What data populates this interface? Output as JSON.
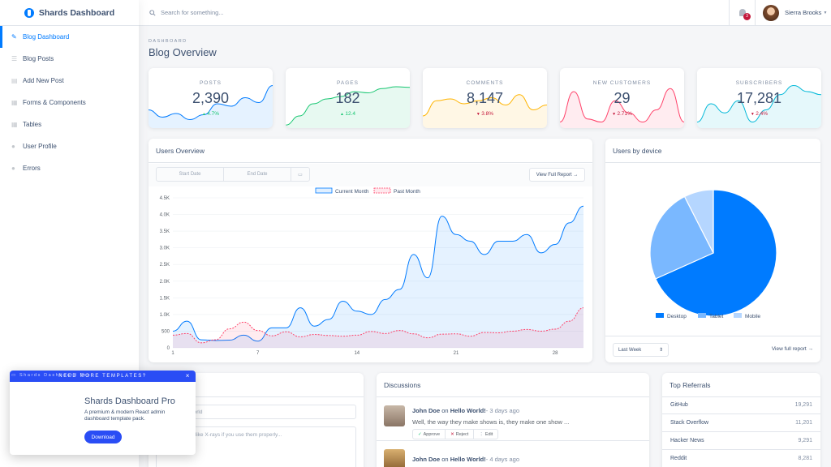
{
  "brand": {
    "name": "Shards Dashboard"
  },
  "sidebar": {
    "items": [
      {
        "label": "Blog Dashboard",
        "icon": "pencil-icon",
        "active": true
      },
      {
        "label": "Blog Posts",
        "icon": "list-icon"
      },
      {
        "label": "Add New Post",
        "icon": "document-icon"
      },
      {
        "label": "Forms & Components",
        "icon": "grid-icon"
      },
      {
        "label": "Tables",
        "icon": "table-icon"
      },
      {
        "label": "User Profile",
        "icon": "user-icon"
      },
      {
        "label": "Errors",
        "icon": "error-icon"
      }
    ]
  },
  "topbar": {
    "search_placeholder": "Search for something...",
    "notification_count": "3",
    "user_name": "Sierra Brooks"
  },
  "page": {
    "subtitle": "DASHBOARD",
    "title": "Blog Overview"
  },
  "stats": [
    {
      "label": "POSTS",
      "value": "2,390",
      "change": "4.7%",
      "direction": "up",
      "color": "#007bff"
    },
    {
      "label": "PAGES",
      "value": "182",
      "change": "12.4",
      "direction": "up",
      "color": "#17c671"
    },
    {
      "label": "COMMENTS",
      "value": "8,147",
      "change": "3.8%",
      "direction": "down",
      "color": "#ffb400"
    },
    {
      "label": "NEW CUSTOMERS",
      "value": "29",
      "change": "2.71%",
      "direction": "down",
      "color": "#ff4169"
    },
    {
      "label": "SUBSCRIBERS",
      "value": "17,281",
      "change": "2.4%",
      "direction": "down",
      "color": "#00b8d8"
    }
  ],
  "users_overview": {
    "title": "Users Overview",
    "start_date_placeholder": "Start Date",
    "end_date_placeholder": "End Date",
    "view_full_report": "View Full Report →"
  },
  "users_by_device": {
    "title": "Users by device",
    "range": "Last Week",
    "view_report": "View full report →"
  },
  "chart_data": [
    {
      "type": "area",
      "x": [
        1,
        2,
        3,
        4,
        5,
        6,
        7,
        8,
        9,
        10,
        11,
        12,
        13,
        14,
        15,
        16,
        17,
        18,
        19,
        20,
        21,
        22,
        23,
        24,
        25,
        26,
        27,
        28,
        29,
        30
      ],
      "x_ticks": [
        "1",
        "7",
        "14",
        "21",
        "28"
      ],
      "y_ticks": [
        "0",
        "500",
        "1.0K",
        "1.5K",
        "2.0K",
        "2.5K",
        "3.0K",
        "3.5K",
        "4.0K",
        "4.5K"
      ],
      "ylim": [
        0,
        4500
      ],
      "series": [
        {
          "name": "Current Month",
          "color": "#007bff",
          "values": [
            500,
            800,
            240,
            220,
            230,
            380,
            200,
            600,
            600,
            1200,
            650,
            850,
            1400,
            1100,
            1000,
            1450,
            1750,
            2800,
            2100,
            3950,
            3400,
            3200,
            2800,
            3200,
            3200,
            3400,
            2850,
            3100,
            3750,
            4250
          ]
        },
        {
          "name": "Past Month",
          "color": "#ff4169",
          "values": [
            380,
            430,
            150,
            240,
            570,
            770,
            520,
            360,
            480,
            330,
            400,
            370,
            350,
            380,
            490,
            430,
            520,
            420,
            300,
            410,
            420,
            350,
            460,
            450,
            500,
            550,
            500,
            560,
            800,
            1200
          ]
        }
      ]
    },
    {
      "type": "pie",
      "categories": [
        "Desktop",
        "Tablet",
        "Mobile"
      ],
      "values": [
        68.3,
        24.2,
        7.5
      ],
      "colors": [
        "#007bff",
        "#7ab8ff",
        "#b5d6ff"
      ],
      "legend": "bottom"
    }
  ],
  "quick_draft": {
    "title_placeholder": "Brave New World",
    "body_placeholder": "Words can be like X-rays if you use them properly..."
  },
  "discussions": {
    "title": "Discussions",
    "items": [
      {
        "author": "John Doe",
        "on": "on",
        "post": "Hello World!",
        "time": "- 3 days ago",
        "text": "Well, the way they make shows is, they make one show ..."
      },
      {
        "author": "John Doe",
        "on": "on",
        "post": "Hello World!",
        "time": "- 4 days ago"
      }
    ],
    "actions": {
      "approve": "Approve",
      "reject": "Reject",
      "edit": "Edit"
    }
  },
  "referrals": {
    "title": "Top Referrals",
    "items": [
      {
        "name": "GitHub",
        "value": "19,291"
      },
      {
        "name": "Stack Overflow",
        "value": "11,201"
      },
      {
        "name": "Hacker News",
        "value": "9,291"
      },
      {
        "name": "Reddit",
        "value": "8,281"
      }
    ]
  },
  "promo": {
    "banner": "NEED MORE TEMPLATES?",
    "image_alt": "Shards Dashboard Pro",
    "title": "Shards Dashboard Pro",
    "text": "A premium & modern React admin dashboard template pack.",
    "button": "Download",
    "close": "×"
  }
}
